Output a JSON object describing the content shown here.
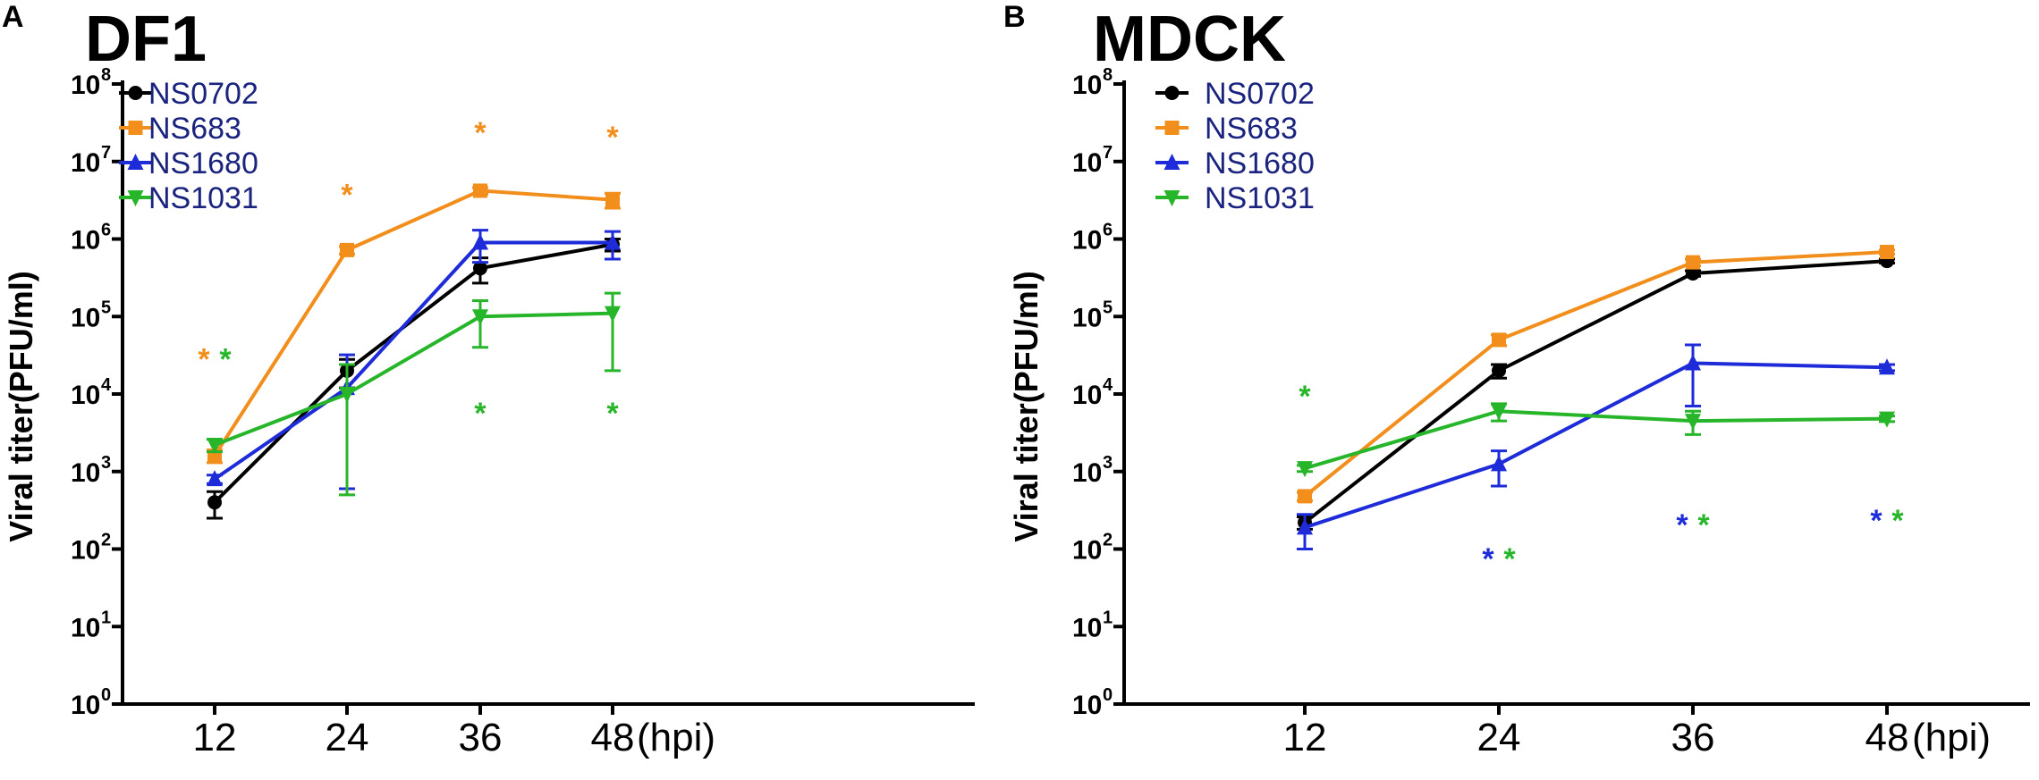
{
  "chart_data": [
    {
      "type": "line",
      "panel": "A",
      "title": "DF1",
      "ylabel": "Viral titer(PFU/ml)",
      "xunit": "(hpi)",
      "yscale": "log",
      "ylim_exp": [
        0,
        8
      ],
      "x": [
        12,
        24,
        36,
        48
      ],
      "x_tick_labels": [
        "12",
        "24",
        "36",
        "48"
      ],
      "y_tick_base": "10",
      "y_tick_exponents": [
        "0",
        "1",
        "2",
        "3",
        "4",
        "5",
        "6",
        "7",
        "8"
      ],
      "series": [
        {
          "name": "NS0702",
          "color": "#000000",
          "marker": "circle",
          "values": [
            400,
            20000,
            420000,
            850000
          ],
          "err": [
            150,
            8000,
            150000,
            150000
          ]
        },
        {
          "name": "NS683",
          "color": "#f28e1c",
          "marker": "square",
          "values": [
            1600,
            720000,
            4200000,
            3200000
          ],
          "err": [
            300,
            80000,
            400000,
            700000
          ]
        },
        {
          "name": "NS1680",
          "color": "#1e2bd8",
          "marker": "triangle-up",
          "values": [
            800,
            12000,
            900000,
            900000
          ],
          "err": [
            100,
            20000,
            400000,
            350000
          ]
        },
        {
          "name": "NS1031",
          "color": "#27b52a",
          "marker": "triangle-down",
          "values": [
            2200,
            10000,
            100000,
            110000
          ],
          "err": [
            400,
            14000,
            60000,
            90000
          ]
        }
      ],
      "annotations": [
        {
          "text": "*",
          "color": "#f28e1c",
          "x": 12,
          "y": 30000
        },
        {
          "text": "*",
          "color": "#27b52a",
          "x": 12,
          "y": 30000
        },
        {
          "text": "*",
          "color": "#f28e1c",
          "x": 24,
          "y": 4000000
        },
        {
          "text": "*",
          "color": "#f28e1c",
          "x": 36,
          "y": 25000000
        },
        {
          "text": "*",
          "color": "#27b52a",
          "x": 36,
          "y": 6000
        },
        {
          "text": "*",
          "color": "#f28e1c",
          "x": 48,
          "y": 22000000
        },
        {
          "text": "*",
          "color": "#27b52a",
          "x": 48,
          "y": 6000
        }
      ]
    },
    {
      "type": "line",
      "panel": "B",
      "title": "MDCK",
      "ylabel": "Viral titer(PFU/ml)",
      "xunit": "(hpi)",
      "yscale": "log",
      "ylim_exp": [
        0,
        8
      ],
      "x": [
        12,
        24,
        36,
        48
      ],
      "x_tick_labels": [
        "12",
        "24",
        "36",
        "48"
      ],
      "y_tick_base": "10",
      "y_tick_exponents": [
        "0",
        "1",
        "2",
        "3",
        "4",
        "5",
        "6",
        "7",
        "8"
      ],
      "series": [
        {
          "name": "NS0702",
          "color": "#000000",
          "marker": "circle",
          "values": [
            220,
            20000,
            360000,
            520000
          ],
          "err": [
            40,
            4000,
            30000,
            30000
          ]
        },
        {
          "name": "NS683",
          "color": "#f28e1c",
          "marker": "square",
          "values": [
            480,
            50000,
            500000,
            680000
          ],
          "err": [
            60,
            8000,
            50000,
            40000
          ]
        },
        {
          "name": "NS1680",
          "color": "#1e2bd8",
          "marker": "triangle-up",
          "values": [
            190,
            1250,
            25000,
            22000
          ],
          "err": [
            90,
            600,
            18000,
            2000
          ]
        },
        {
          "name": "NS1031",
          "color": "#27b52a",
          "marker": "triangle-down",
          "values": [
            1100,
            6000,
            4500,
            4800
          ],
          "err": [
            100,
            1500,
            1500,
            400
          ]
        }
      ],
      "annotations": [
        {
          "text": "*",
          "color": "#27b52a",
          "x": 12,
          "y": 10000
        },
        {
          "text": "*",
          "color": "#1e2bd8",
          "x": 24,
          "y": 80
        },
        {
          "text": "*",
          "color": "#27b52a",
          "x": 24,
          "y": 80
        },
        {
          "text": "*",
          "color": "#1e2bd8",
          "x": 36,
          "y": 220
        },
        {
          "text": "*",
          "color": "#27b52a",
          "x": 36,
          "y": 220
        },
        {
          "text": "*",
          "color": "#1e2bd8",
          "x": 48,
          "y": 250
        },
        {
          "text": "*",
          "color": "#27b52a",
          "x": 48,
          "y": 250
        }
      ]
    }
  ]
}
